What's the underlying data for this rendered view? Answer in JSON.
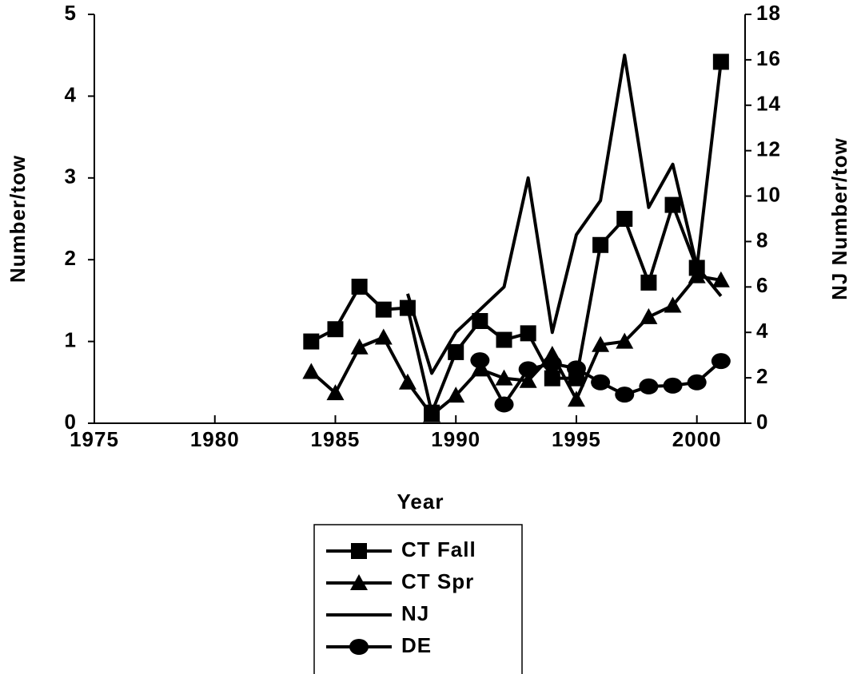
{
  "chart_data": {
    "type": "line",
    "xlabel": "Year",
    "ylabel": "Number/tow",
    "y2label": "NJ Number/tow",
    "x": [
      1984,
      1985,
      1986,
      1987,
      1988,
      1989,
      1990,
      1991,
      1992,
      1993,
      1994,
      1995,
      1996,
      1997,
      1998,
      1999,
      2000,
      2001
    ],
    "series": [
      {
        "name": "CT Fall",
        "color": "#000000",
        "marker": "square",
        "values": [
          1.0,
          1.15,
          1.67,
          1.39,
          1.41,
          0.13,
          0.87,
          1.25,
          1.02,
          1.1,
          0.55,
          0.55,
          2.18,
          2.5,
          1.72,
          2.67,
          1.9,
          4.42
        ]
      },
      {
        "name": "CT Spr",
        "color": "#000000",
        "marker": "triangle",
        "values": [
          0.63,
          0.37,
          0.93,
          1.05,
          0.5,
          0.1,
          0.34,
          0.66,
          0.55,
          0.52,
          0.84,
          0.29,
          0.96,
          1.0,
          1.3,
          1.44,
          1.8,
          1.75
        ]
      },
      {
        "name": "NJ",
        "color": "#000000",
        "marker": "none",
        "axis": "y2",
        "values": [
          null,
          null,
          null,
          null,
          5.7,
          2.2,
          4.0,
          5.0,
          6.0,
          10.8,
          4.0,
          8.3,
          9.8,
          16.2,
          9.5,
          11.4,
          6.9,
          5.6
        ]
      },
      {
        "name": "DE",
        "color": "#000000",
        "marker": "circle",
        "values": [
          null,
          null,
          null,
          null,
          null,
          null,
          null,
          0.77,
          0.23,
          0.66,
          0.73,
          0.67,
          0.5,
          0.35,
          0.45,
          0.46,
          0.5,
          0.76
        ]
      }
    ],
    "xlim": [
      1975,
      2002
    ],
    "xticks": [
      1975,
      1980,
      1985,
      1990,
      1995,
      2000
    ],
    "ylim": [
      0,
      5
    ],
    "yticks": [
      0,
      1,
      2,
      3,
      4,
      5
    ],
    "y2lim": [
      0,
      18
    ],
    "y2ticks": [
      0,
      2,
      4,
      6,
      8,
      10,
      12,
      14,
      16,
      18
    ],
    "legend": "bottom"
  }
}
